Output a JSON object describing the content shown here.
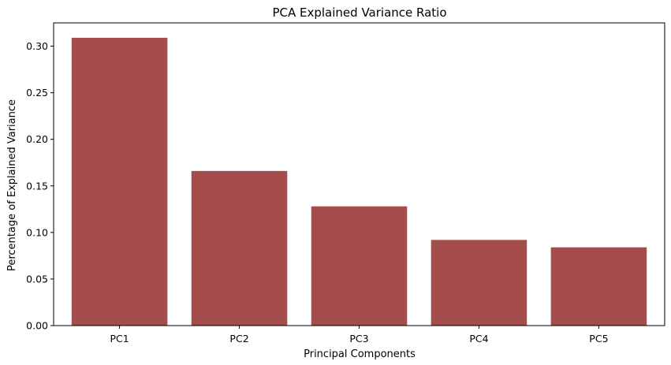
{
  "chart_data": {
    "type": "bar",
    "title": "PCA Explained Variance Ratio",
    "xlabel": "Principal Components",
    "ylabel": "Percentage of Explained Variance",
    "categories": [
      "PC1",
      "PC2",
      "PC3",
      "PC4",
      "PC5"
    ],
    "values": [
      0.309,
      0.166,
      0.128,
      0.092,
      0.084
    ],
    "ylim": [
      0,
      0.325
    ],
    "yticks": [
      "0.00",
      "0.05",
      "0.10",
      "0.15",
      "0.20",
      "0.25",
      "0.30"
    ],
    "ytick_values": [
      0,
      0.05,
      0.1,
      0.15,
      0.2,
      0.25,
      0.3
    ],
    "bar_color": "#a54d4d",
    "grid": false,
    "legend": "none"
  }
}
